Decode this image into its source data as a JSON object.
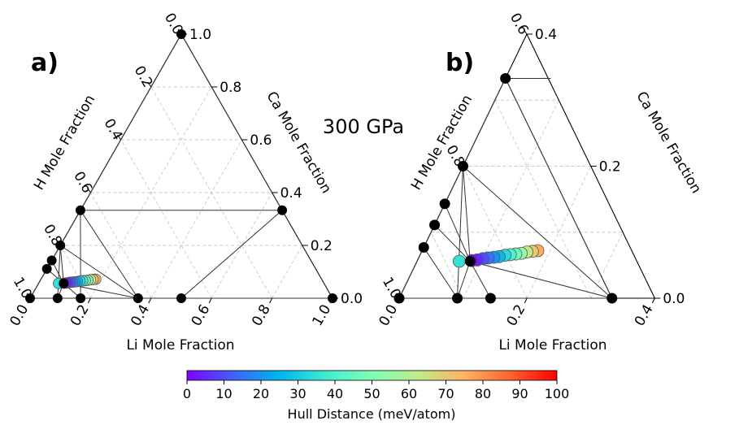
{
  "figure": {
    "pressure_label": "300 GPa",
    "colorbar": {
      "label": "Hull Distance (meV/atom)",
      "min": 0,
      "max": 100,
      "ticks": [
        "0",
        "10",
        "20",
        "30",
        "40",
        "50",
        "60",
        "70",
        "80",
        "90",
        "100"
      ],
      "colormap": "rainbow"
    }
  },
  "chart_data": [
    {
      "type": "scatter",
      "panel_label": "a)",
      "plot_kind": "ternary",
      "axes": {
        "bottom": {
          "label": "Li Mole Fraction",
          "ticks": [
            "0.0",
            "0.2",
            "0.4",
            "0.6",
            "0.8",
            "1.0"
          ],
          "range": [
            0,
            1
          ]
        },
        "left": {
          "label": "H Mole Fraction",
          "ticks": [
            "1.0",
            "0.8",
            "0.6",
            "0.4",
            "0.2",
            "0.0"
          ],
          "range": [
            0,
            1
          ]
        },
        "right": {
          "label": "Ca Mole Fraction",
          "ticks": [
            "0.0",
            "0.2",
            "0.4",
            "0.6",
            "0.8",
            "1.0"
          ],
          "range": [
            0,
            1
          ]
        }
      },
      "grid": true,
      "stable_points": [
        {
          "li": 0.0,
          "ca": 0.0
        },
        {
          "li": 1.0,
          "ca": 0.0
        },
        {
          "li": 0.0,
          "ca": 1.0
        },
        {
          "li": 0.5,
          "ca": 0.0
        },
        {
          "li": 0.357,
          "ca": 0.0
        },
        {
          "li": 0.167,
          "ca": 0.0
        },
        {
          "li": 0.091,
          "ca": 0.0
        },
        {
          "li": 0.0,
          "ca": 0.333
        },
        {
          "li": 0.667,
          "ca": 0.333
        },
        {
          "li": 0.0,
          "ca": 0.2
        },
        {
          "li": 0.0,
          "ca": 0.143
        },
        {
          "li": 0.0,
          "ca": 0.111
        },
        {
          "li": 0.083,
          "ca": 0.056
        }
      ],
      "tie_lines": [
        [
          0,
          1
        ],
        [
          0,
          2
        ],
        [
          1,
          2
        ],
        [
          7,
          8
        ],
        [
          8,
          3
        ],
        [
          8,
          1
        ],
        [
          7,
          4
        ],
        [
          7,
          5
        ],
        [
          9,
          4
        ],
        [
          9,
          6
        ],
        [
          9,
          12
        ],
        [
          10,
          12
        ],
        [
          11,
          12
        ],
        [
          12,
          5
        ],
        [
          12,
          6
        ],
        [
          12,
          4
        ]
      ],
      "hull_distance_points": [
        {
          "li": 0.085,
          "ca": 0.057,
          "value": 0
        },
        {
          "li": 0.093,
          "ca": 0.058,
          "value": 5
        },
        {
          "li": 0.101,
          "ca": 0.06,
          "value": 10
        },
        {
          "li": 0.109,
          "ca": 0.061,
          "value": 15
        },
        {
          "li": 0.117,
          "ca": 0.062,
          "value": 20
        },
        {
          "li": 0.125,
          "ca": 0.063,
          "value": 26
        },
        {
          "li": 0.133,
          "ca": 0.065,
          "value": 33
        },
        {
          "li": 0.141,
          "ca": 0.066,
          "value": 40
        },
        {
          "li": 0.149,
          "ca": 0.067,
          "value": 47
        },
        {
          "li": 0.157,
          "ca": 0.068,
          "value": 55
        },
        {
          "li": 0.165,
          "ca": 0.07,
          "value": 63
        },
        {
          "li": 0.173,
          "ca": 0.071,
          "value": 70
        },
        {
          "li": 0.181,
          "ca": 0.072,
          "value": 76
        },
        {
          "li": 0.066,
          "ca": 0.056,
          "value": 35
        }
      ]
    },
    {
      "type": "scatter",
      "panel_label": "b)",
      "plot_kind": "ternary",
      "axes": {
        "bottom": {
          "label": "Li Mole Fraction",
          "ticks": [
            "0.0",
            "0.2",
            "0.4"
          ],
          "range": [
            0,
            0.4
          ]
        },
        "left": {
          "label": "H Mole Fraction",
          "ticks": [
            "1.0",
            "0.8",
            "0.6"
          ],
          "range": [
            0.6,
            1
          ]
        },
        "right": {
          "label": "Ca Mole Fraction",
          "ticks": [
            "0.0",
            "0.2",
            "0.4"
          ],
          "range": [
            0,
            0.4
          ]
        }
      },
      "grid": true,
      "stable_points": [
        {
          "li": 0.0,
          "ca": 0.0
        },
        {
          "li": 0.091,
          "ca": 0.0
        },
        {
          "li": 0.143,
          "ca": 0.0
        },
        {
          "li": 0.333,
          "ca": 0.0
        },
        {
          "li": 0.0,
          "ca": 0.333
        },
        {
          "li": 0.0,
          "ca": 0.2
        },
        {
          "li": 0.0,
          "ca": 0.143
        },
        {
          "li": 0.0,
          "ca": 0.111
        },
        {
          "li": 0.0,
          "ca": 0.077
        },
        {
          "li": 0.083,
          "ca": 0.056
        }
      ],
      "tie_lines": [
        [
          0,
          3
        ],
        [
          0,
          4
        ],
        [
          3,
          4
        ],
        [
          4,
          3
        ],
        [
          5,
          3
        ],
        [
          5,
          1
        ],
        [
          5,
          9
        ],
        [
          6,
          9
        ],
        [
          7,
          9
        ],
        [
          8,
          1
        ],
        [
          9,
          1
        ],
        [
          9,
          2
        ],
        [
          9,
          3
        ],
        [
          4,
          "0.071,0.333"
        ]
      ],
      "hull_distance_points": [
        {
          "li": 0.085,
          "ca": 0.057,
          "value": 0
        },
        {
          "li": 0.093,
          "ca": 0.058,
          "value": 5
        },
        {
          "li": 0.101,
          "ca": 0.06,
          "value": 10
        },
        {
          "li": 0.109,
          "ca": 0.061,
          "value": 15
        },
        {
          "li": 0.117,
          "ca": 0.062,
          "value": 20
        },
        {
          "li": 0.125,
          "ca": 0.063,
          "value": 26
        },
        {
          "li": 0.133,
          "ca": 0.065,
          "value": 33
        },
        {
          "li": 0.141,
          "ca": 0.066,
          "value": 40
        },
        {
          "li": 0.149,
          "ca": 0.067,
          "value": 47
        },
        {
          "li": 0.157,
          "ca": 0.068,
          "value": 55
        },
        {
          "li": 0.165,
          "ca": 0.07,
          "value": 63
        },
        {
          "li": 0.173,
          "ca": 0.071,
          "value": 70
        },
        {
          "li": 0.181,
          "ca": 0.072,
          "value": 76
        },
        {
          "li": 0.066,
          "ca": 0.056,
          "value": 35
        }
      ]
    }
  ]
}
